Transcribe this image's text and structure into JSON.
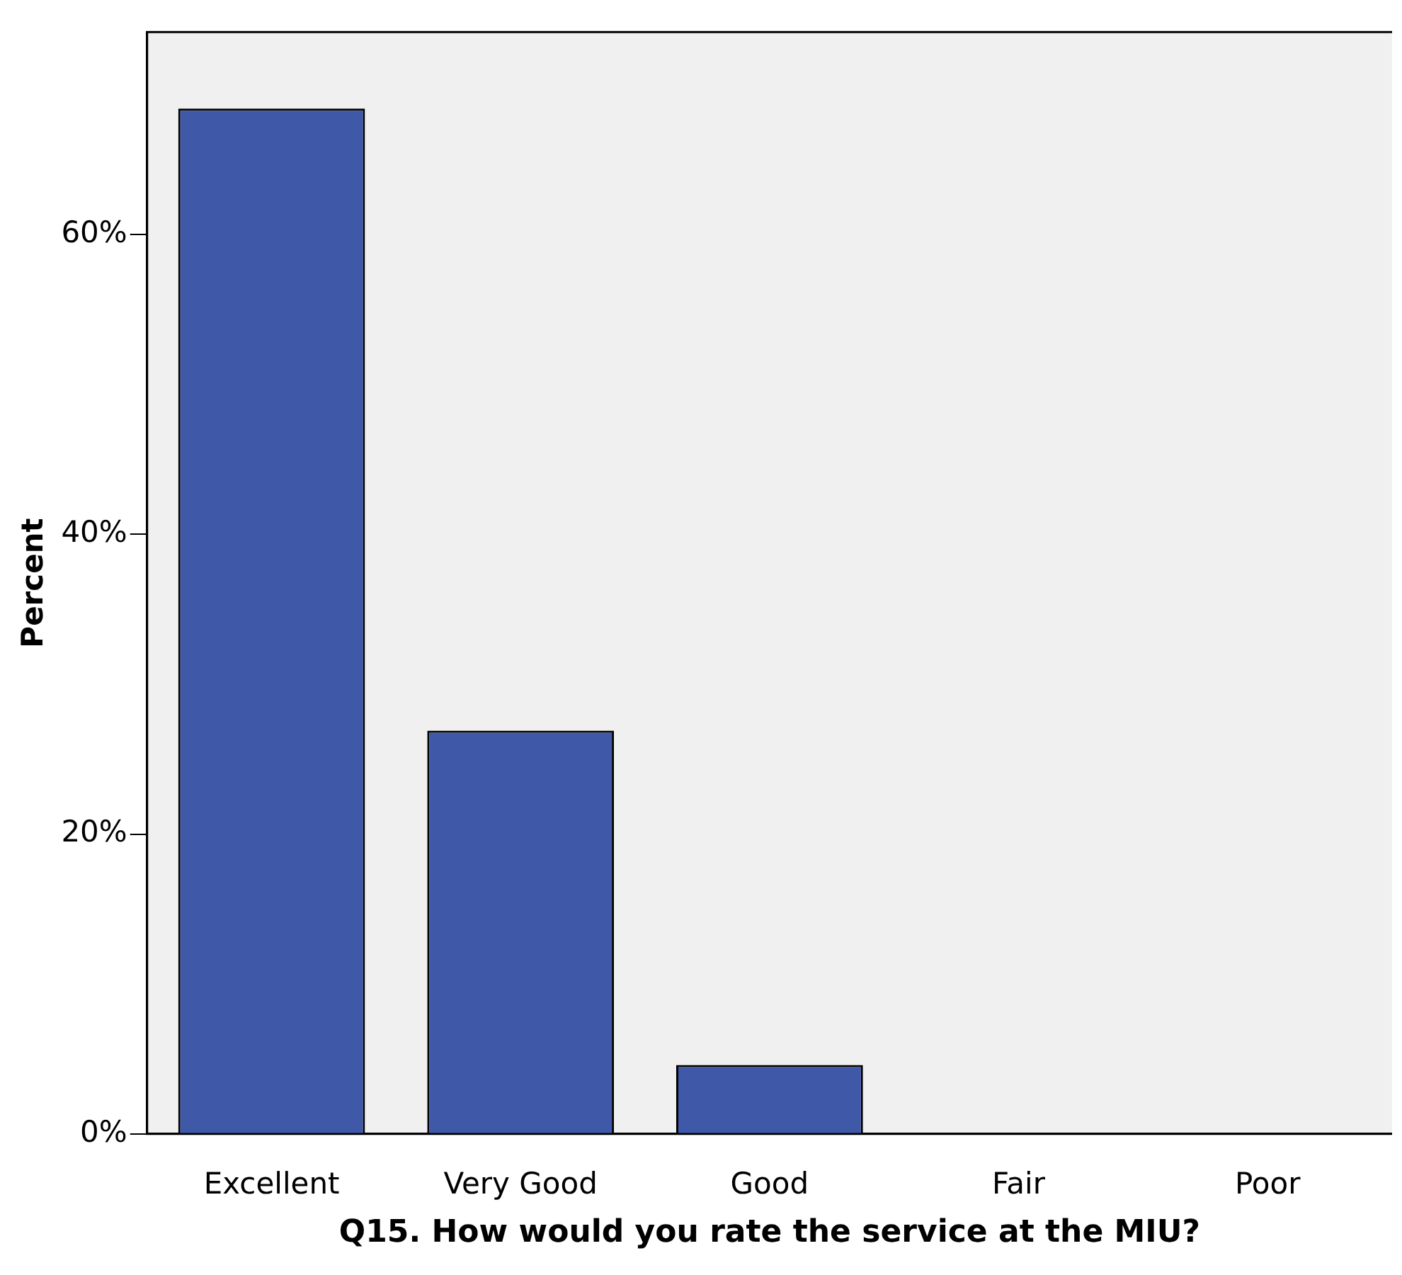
{
  "chart_data": {
    "type": "bar",
    "xlabel": "Q15. How would you rate the service at the MIU?",
    "ylabel": "Percent",
    "categories": [
      "Excellent",
      "Very Good",
      "Good",
      "Fair",
      "Poor"
    ],
    "values": [
      68.4,
      26.9,
      4.6,
      0,
      0
    ],
    "color": "#3f58a8",
    "ylim": [
      0,
      73.5
    ],
    "yticks": [
      {
        "value": 0,
        "label": "0%"
      },
      {
        "value": 20,
        "label": "20%"
      },
      {
        "value": 40,
        "label": "40%"
      },
      {
        "value": 60,
        "label": "60%"
      }
    ],
    "grid": false,
    "legend": false
  }
}
